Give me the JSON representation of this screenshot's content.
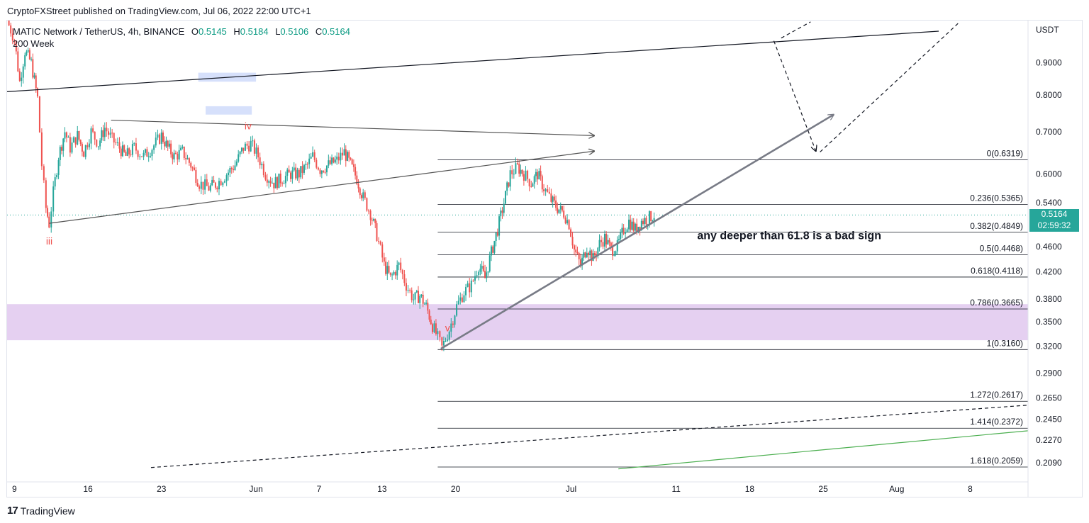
{
  "header": {
    "published": "CryptoFXStreet published on TradingView.com, Jul 06, 2022 22:00 UTC+1"
  },
  "legend": {
    "symbol": "MATIC Network / TetherUS, 4h, BINANCE",
    "o_label": "O",
    "o": "0.5145",
    "h_label": "H",
    "h": "0.5184",
    "l_label": "L",
    "l": "0.5106",
    "c_label": "C",
    "c": "0.5164",
    "indicator": "200 Week"
  },
  "footer": {
    "brand": "TradingView",
    "logo": "17"
  },
  "colors": {
    "up": "#26a69a",
    "down": "#ef5350",
    "zone": "#e1c8ee",
    "text": "#131722"
  },
  "chart_data": {
    "type": "candlestick",
    "title": "MATIC Network / TetherUS, 4h, BINANCE",
    "y_axis_unit": "USDT",
    "y_scale": "log",
    "ylim": [
      0.195,
      1.05
    ],
    "y_ticks": [
      "0.9000",
      "0.8000",
      "0.7000",
      "0.6000",
      "0.5400",
      "0.4600",
      "0.4200",
      "0.3800",
      "0.3500",
      "0.3200",
      "0.2900",
      "0.2650",
      "0.2450",
      "0.2270",
      "0.2090"
    ],
    "x_axis": "2022 dates (day index: May 1 = 0)",
    "xlim": [
      7.3,
      104.5
    ],
    "x_ticks": [
      {
        "label": "9",
        "day": 8
      },
      {
        "label": "16",
        "day": 15
      },
      {
        "label": "23",
        "day": 22
      },
      {
        "label": "Jun",
        "day": 31
      },
      {
        "label": "7",
        "day": 37
      },
      {
        "label": "13",
        "day": 43
      },
      {
        "label": "20",
        "day": 50
      },
      {
        "label": "Jul",
        "day": 61
      },
      {
        "label": "11",
        "day": 71
      },
      {
        "label": "18",
        "day": 78
      },
      {
        "label": "25",
        "day": 85
      },
      {
        "label": "Aug",
        "day": 92
      },
      {
        "label": "8",
        "day": 99
      }
    ],
    "last_price": "0.5164",
    "countdown": "02:59:32",
    "path_points": [
      [
        7.3,
        1.05
      ],
      [
        8.0,
        0.98
      ],
      [
        8.5,
        0.84
      ],
      [
        9.0,
        0.94
      ],
      [
        9.6,
        0.9
      ],
      [
        10.2,
        0.79
      ],
      [
        10.6,
        0.62
      ],
      [
        11.0,
        0.53
      ],
      [
        11.3,
        0.5
      ],
      [
        11.7,
        0.56
      ],
      [
        12.2,
        0.64
      ],
      [
        12.8,
        0.7
      ],
      [
        13.3,
        0.66
      ],
      [
        14.0,
        0.69
      ],
      [
        14.6,
        0.65
      ],
      [
        15.3,
        0.7
      ],
      [
        16.0,
        0.67
      ],
      [
        16.6,
        0.71
      ],
      [
        17.3,
        0.68
      ],
      [
        18.0,
        0.66
      ],
      [
        18.6,
        0.64
      ],
      [
        19.4,
        0.66
      ],
      [
        20.3,
        0.64
      ],
      [
        21.1,
        0.66
      ],
      [
        22.0,
        0.69
      ],
      [
        22.6,
        0.66
      ],
      [
        23.2,
        0.64
      ],
      [
        24.0,
        0.65
      ],
      [
        24.8,
        0.62
      ],
      [
        25.6,
        0.58
      ],
      [
        26.5,
        0.57
      ],
      [
        27.3,
        0.58
      ],
      [
        28.2,
        0.6
      ],
      [
        29.0,
        0.62
      ],
      [
        29.8,
        0.66
      ],
      [
        30.5,
        0.67
      ],
      [
        31.2,
        0.64
      ],
      [
        31.9,
        0.6
      ],
      [
        32.7,
        0.58
      ],
      [
        33.5,
        0.59
      ],
      [
        34.3,
        0.6
      ],
      [
        35.1,
        0.6
      ],
      [
        35.9,
        0.62
      ],
      [
        36.4,
        0.64
      ],
      [
        37.1,
        0.61
      ],
      [
        37.9,
        0.62
      ],
      [
        38.7,
        0.63
      ],
      [
        39.4,
        0.65
      ],
      [
        40.0,
        0.62
      ],
      [
        40.6,
        0.59
      ],
      [
        41.2,
        0.55
      ],
      [
        41.9,
        0.52
      ],
      [
        42.5,
        0.48
      ],
      [
        43.2,
        0.43
      ],
      [
        43.8,
        0.41
      ],
      [
        44.6,
        0.43
      ],
      [
        45.3,
        0.4
      ],
      [
        46.0,
        0.38
      ],
      [
        46.6,
        0.385
      ],
      [
        47.2,
        0.37
      ],
      [
        47.8,
        0.345
      ],
      [
        48.3,
        0.33
      ],
      [
        48.7,
        0.318
      ],
      [
        49.4,
        0.34
      ],
      [
        50.1,
        0.37
      ],
      [
        50.8,
        0.39
      ],
      [
        51.5,
        0.4
      ],
      [
        52.2,
        0.43
      ],
      [
        52.8,
        0.41
      ],
      [
        53.4,
        0.45
      ],
      [
        54.0,
        0.49
      ],
      [
        54.6,
        0.54
      ],
      [
        55.2,
        0.6
      ],
      [
        55.9,
        0.615
      ],
      [
        56.5,
        0.6
      ],
      [
        57.2,
        0.58
      ],
      [
        57.8,
        0.6
      ],
      [
        58.4,
        0.57
      ],
      [
        59.1,
        0.545
      ],
      [
        59.7,
        0.53
      ],
      [
        60.3,
        0.52
      ],
      [
        60.8,
        0.5
      ],
      [
        61.3,
        0.455
      ],
      [
        61.9,
        0.43
      ],
      [
        62.5,
        0.46
      ],
      [
        63.1,
        0.44
      ],
      [
        63.7,
        0.465
      ],
      [
        64.2,
        0.475
      ],
      [
        64.8,
        0.455
      ],
      [
        65.4,
        0.46
      ],
      [
        66.0,
        0.49
      ],
      [
        66.5,
        0.505
      ],
      [
        67.1,
        0.49
      ],
      [
        67.7,
        0.505
      ],
      [
        68.3,
        0.51
      ],
      [
        68.9,
        0.5164
      ]
    ],
    "fibonacci": [
      {
        "label": "0(0.6319)",
        "ratio": "0",
        "price": 0.6319
      },
      {
        "label": "0.236(0.5365)",
        "ratio": "0.236",
        "price": 0.5365
      },
      {
        "label": "0.382(0.4849)",
        "ratio": "0.382",
        "price": 0.4849
      },
      {
        "label": "0.5(0.4468)",
        "ratio": "0.5",
        "price": 0.4468
      },
      {
        "label": "0.618(0.4118)",
        "ratio": "0.618",
        "price": 0.4118
      },
      {
        "label": "0.786(0.3665)",
        "ratio": "0.786",
        "price": 0.3665
      },
      {
        "label": "1(0.3160)",
        "ratio": "1",
        "price": 0.316
      },
      {
        "label": "1.272(0.2617)",
        "ratio": "1.272",
        "price": 0.2617
      },
      {
        "label": "1.414(0.2372)",
        "ratio": "1.414",
        "price": 0.2372
      },
      {
        "label": "1.618(0.2059)",
        "ratio": "1.618",
        "price": 0.2059
      }
    ],
    "fib_start_day": 48.3,
    "demand_zone": {
      "low": 0.327,
      "high": 0.373
    },
    "blue_boxes": [
      {
        "day_from": 25.5,
        "day_to": 31.0,
        "price_from": 0.84,
        "price_to": 0.868
      },
      {
        "day_from": 26.2,
        "day_to": 30.6,
        "price_from": 0.745,
        "price_to": 0.768
      }
    ],
    "trendlines": [
      {
        "name": "long-term-upper",
        "style": "solid",
        "color": "#131722",
        "p1": [
          7.3,
          0.81
        ],
        "p2": [
          96.0,
          1.01
        ]
      },
      {
        "name": "triangle-top",
        "style": "solid",
        "arrow": true,
        "color": "#555555",
        "p1": [
          17.2,
          0.73
        ],
        "p2": [
          63.2,
          0.69
        ]
      },
      {
        "name": "triangle-bottom",
        "style": "solid",
        "arrow": true,
        "color": "#555555",
        "p1": [
          11.3,
          0.501
        ],
        "p2": [
          63.2,
          0.652
        ]
      },
      {
        "name": "rising-support",
        "style": "solid",
        "arrow": true,
        "color": "#787b86",
        "p1": [
          48.6,
          0.317
        ],
        "p2": [
          86.0,
          0.745
        ]
      },
      {
        "name": "projection-down",
        "style": "dashed",
        "arrow": true,
        "color": "#131722",
        "p1": [
          80.3,
          0.975
        ],
        "p2": [
          84.3,
          0.652
        ]
      },
      {
        "name": "projection-up",
        "style": "dashed",
        "color": "#131722",
        "p1": [
          84.7,
          0.65
        ],
        "p2": [
          98.0,
          1.045
        ]
      },
      {
        "name": "top-dash",
        "style": "dashed",
        "color": "#131722",
        "p1": [
          81.0,
          0.985
        ],
        "p2": [
          83.8,
          1.045
        ]
      },
      {
        "name": "lower-dashed",
        "style": "dashed",
        "color": "#131722",
        "p1": [
          21.0,
          0.2055
        ],
        "p2": [
          104.5,
          0.258
        ]
      },
      {
        "name": "lower-green",
        "style": "solid",
        "color": "#4caf50",
        "p1": [
          65.5,
          0.2045
        ],
        "p2": [
          104.5,
          0.235
        ]
      }
    ],
    "wave_labels": [
      {
        "text": "iii",
        "day": 11.0,
        "price": 0.464
      },
      {
        "text": "iv",
        "day": 29.9,
        "price": 0.706
      },
      {
        "text": "v",
        "day": 49.0,
        "price": 0.338
      }
    ],
    "annotation": "any deeper than 61.8 is a bad sign",
    "annotation_day": 73.0,
    "annotation_price": 0.473
  }
}
